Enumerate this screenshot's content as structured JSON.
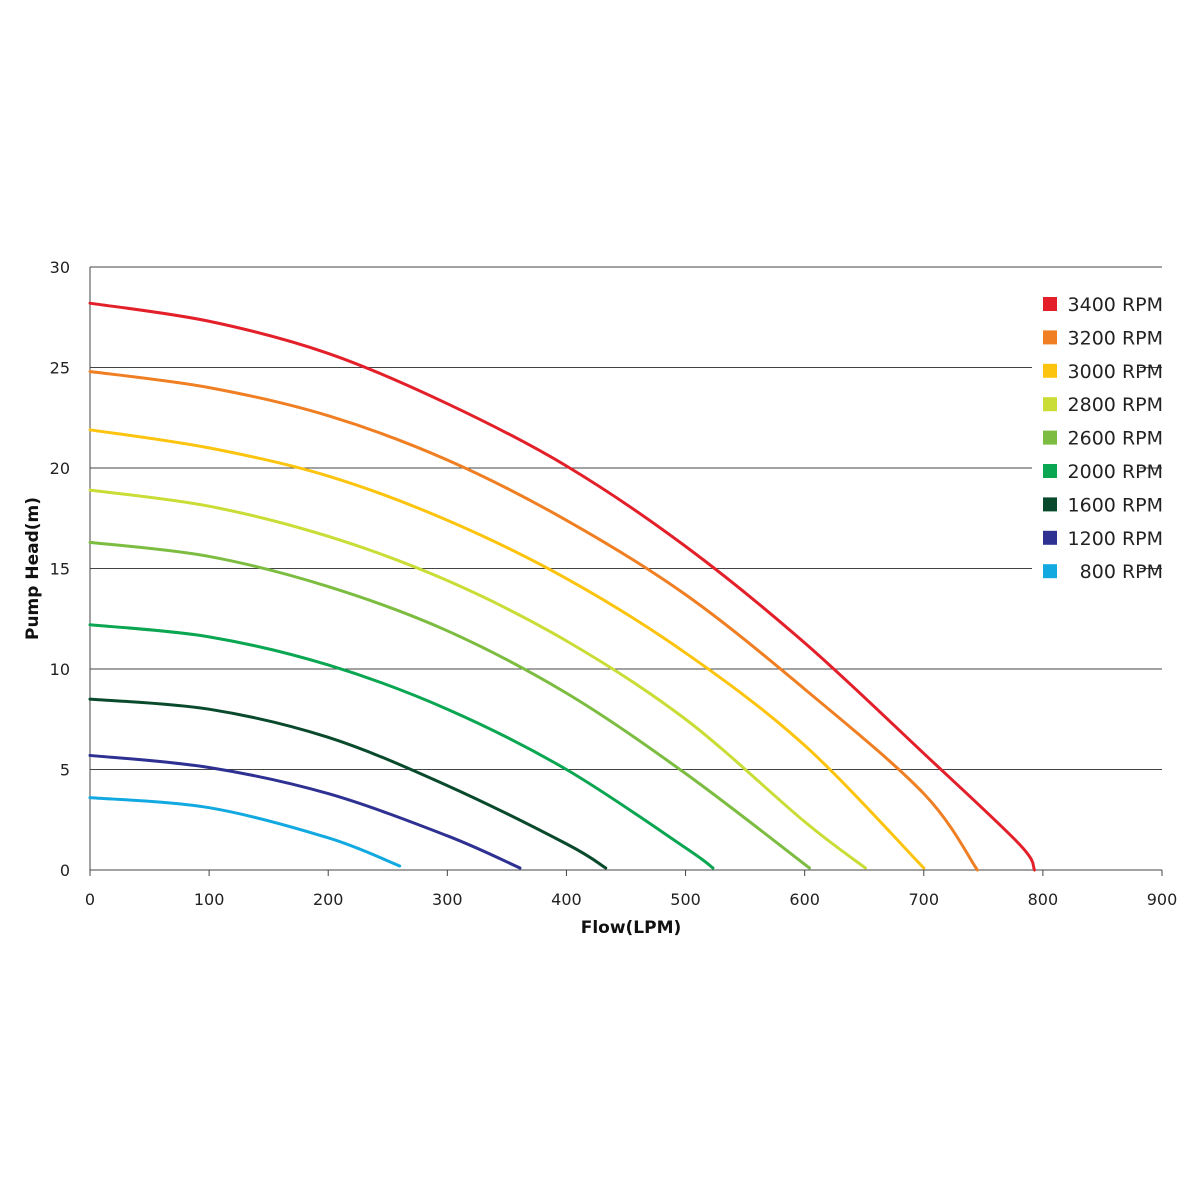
{
  "chart_data": {
    "type": "line",
    "xlabel": "Flow(LPM)",
    "ylabel": "Pump Head(m)",
    "xlim": [
      0,
      900
    ],
    "ylim": [
      0,
      30
    ],
    "xticks": [
      0,
      100,
      200,
      300,
      400,
      500,
      600,
      700,
      800,
      900
    ],
    "yticks": [
      0,
      5,
      10,
      15,
      20,
      25,
      30
    ],
    "grid": "horizontal",
    "legend_position": "right",
    "series": [
      {
        "name": "3400 RPM",
        "color": "#e3202a",
        "points": [
          [
            0,
            28.2
          ],
          [
            100,
            27.3
          ],
          [
            200,
            25.7
          ],
          [
            300,
            23.2
          ],
          [
            400,
            20.1
          ],
          [
            500,
            16.1
          ],
          [
            600,
            11.3
          ],
          [
            700,
            5.8
          ],
          [
            780,
            1.3
          ],
          [
            793,
            0
          ]
        ]
      },
      {
        "name": "3200 RPM",
        "color": "#ef7f22",
        "points": [
          [
            0,
            24.8
          ],
          [
            100,
            24.0
          ],
          [
            200,
            22.6
          ],
          [
            300,
            20.4
          ],
          [
            400,
            17.4
          ],
          [
            500,
            13.7
          ],
          [
            600,
            9.0
          ],
          [
            700,
            3.8
          ],
          [
            745,
            0
          ]
        ]
      },
      {
        "name": "3000 RPM",
        "color": "#fcc40f",
        "points": [
          [
            0,
            21.9
          ],
          [
            100,
            21.0
          ],
          [
            200,
            19.6
          ],
          [
            300,
            17.4
          ],
          [
            400,
            14.5
          ],
          [
            500,
            10.8
          ],
          [
            600,
            6.2
          ],
          [
            700,
            0.1
          ]
        ]
      },
      {
        "name": "2800 RPM",
        "color": "#c9dd36",
        "points": [
          [
            0,
            18.9
          ],
          [
            100,
            18.1
          ],
          [
            200,
            16.6
          ],
          [
            300,
            14.4
          ],
          [
            400,
            11.4
          ],
          [
            500,
            7.5
          ],
          [
            600,
            2.4
          ],
          [
            651,
            0.1
          ]
        ]
      },
      {
        "name": "2600 RPM",
        "color": "#7cbd41",
        "points": [
          [
            0,
            16.3
          ],
          [
            100,
            15.6
          ],
          [
            200,
            14.1
          ],
          [
            300,
            11.9
          ],
          [
            400,
            8.8
          ],
          [
            500,
            4.8
          ],
          [
            604,
            0.1
          ]
        ]
      },
      {
        "name": "2000 RPM",
        "color": "#0aa651",
        "points": [
          [
            0,
            12.2
          ],
          [
            100,
            11.6
          ],
          [
            200,
            10.2
          ],
          [
            300,
            8.0
          ],
          [
            400,
            5.0
          ],
          [
            500,
            1.1
          ],
          [
            523,
            0.1
          ]
        ]
      },
      {
        "name": "1600 RPM",
        "color": "#0a4a2c",
        "points": [
          [
            0,
            8.5
          ],
          [
            100,
            8.0
          ],
          [
            200,
            6.6
          ],
          [
            300,
            4.2
          ],
          [
            400,
            1.3
          ],
          [
            433,
            0.1
          ]
        ]
      },
      {
        "name": "1200 RPM",
        "color": "#2e3192",
        "points": [
          [
            0,
            5.7
          ],
          [
            100,
            5.1
          ],
          [
            200,
            3.8
          ],
          [
            300,
            1.7
          ],
          [
            361,
            0.1
          ]
        ]
      },
      {
        "name": "800 RPM",
        "color": "#12a9e0",
        "points": [
          [
            0,
            3.6
          ],
          [
            100,
            3.1
          ],
          [
            200,
            1.6
          ],
          [
            260,
            0.2
          ]
        ]
      }
    ]
  }
}
